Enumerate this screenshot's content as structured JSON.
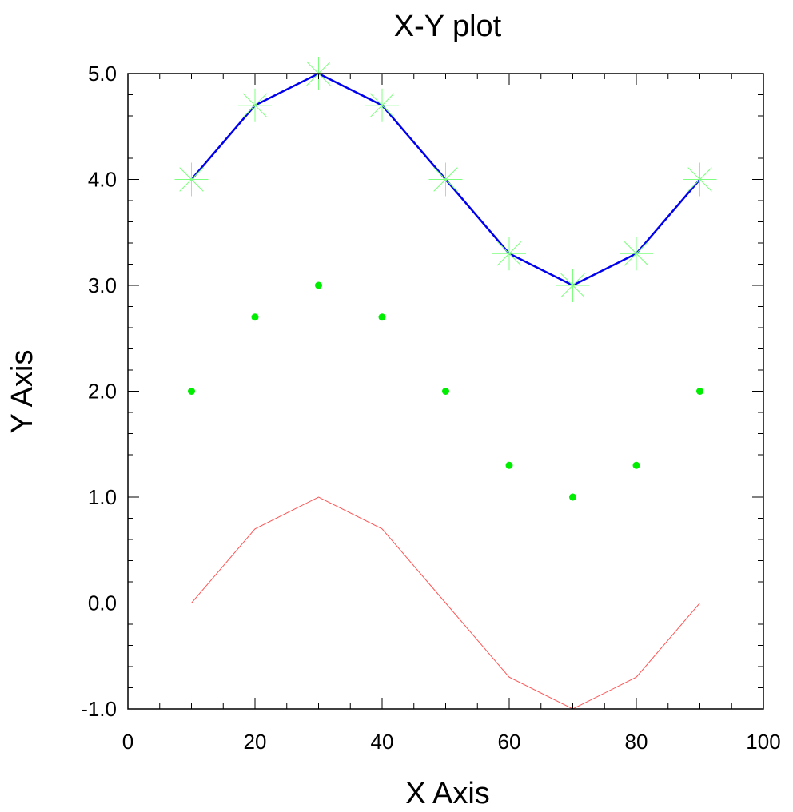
{
  "chart_data": {
    "type": "line",
    "title": "X-Y plot",
    "xlabel": "X Axis",
    "ylabel": "Y Axis",
    "xlim": [
      0,
      100
    ],
    "ylim": [
      -1.0,
      5.0
    ],
    "x_ticks": [
      "0",
      "20",
      "40",
      "60",
      "80",
      "100"
    ],
    "y_ticks": [
      "-1.0",
      "0.0",
      "1.0",
      "2.0",
      "3.0",
      "4.0",
      "5.0"
    ],
    "grid": false,
    "x": [
      10,
      20,
      30,
      40,
      50,
      60,
      70,
      80,
      90
    ],
    "series": [
      {
        "style": "line+asterisk-markers",
        "line_color": "#0000ee",
        "marker_color": "#7fff7f",
        "values": [
          4.0,
          4.7,
          5.0,
          4.7,
          4.0,
          3.3,
          3.0,
          3.3,
          4.0
        ]
      },
      {
        "style": "dot-markers",
        "marker_color": "#00ee00",
        "values": [
          2.0,
          2.7,
          3.0,
          2.7,
          2.0,
          1.3,
          1.0,
          1.3,
          2.0
        ]
      },
      {
        "style": "thin-line",
        "line_color": "#ff5555",
        "values": [
          0.0,
          0.7,
          1.0,
          0.7,
          0.0,
          -0.7,
          -1.0,
          -0.7,
          0.0
        ]
      }
    ]
  }
}
